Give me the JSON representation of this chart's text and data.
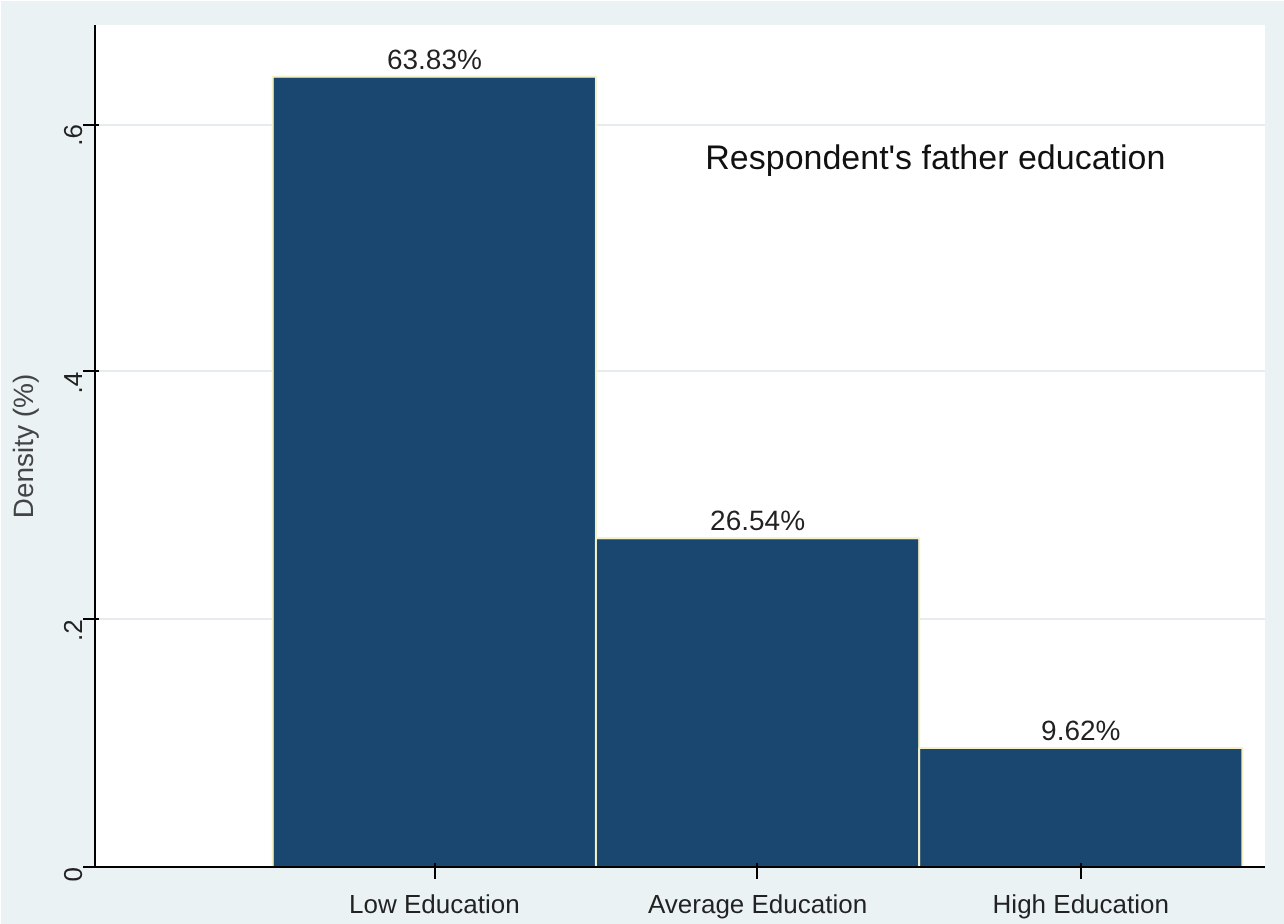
{
  "chart_data": {
    "type": "bar",
    "ylabel": "Density (%)",
    "categories": [
      "Low Education",
      "Average Education",
      "High Education"
    ],
    "values": [
      0.6383,
      0.2654,
      0.0962
    ],
    "value_labels": [
      "63.83%",
      "26.54%",
      "9.62%"
    ],
    "color": "#1a476f",
    "ylim": [
      0,
      0.68
    ],
    "yticks": [
      0,
      {
        "value": 0.2,
        "label": ".2"
      },
      {
        "value": 0.4,
        "label": ".4"
      },
      {
        "value": 0.6,
        "label": ".6"
      }
    ],
    "grid": "y",
    "annotations": [
      "Respondent's father education"
    ]
  }
}
